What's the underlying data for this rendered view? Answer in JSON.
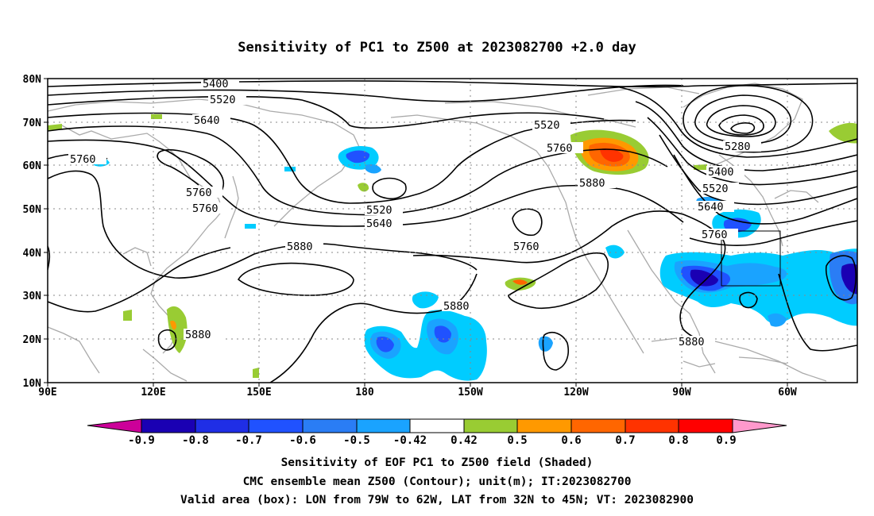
{
  "title": "Sensitivity of PC1 to Z500 at 2023082700 +2.0 day",
  "map": {
    "lon_labels": [
      "90E",
      "120E",
      "150E",
      "180",
      "150W",
      "120W",
      "90W",
      "60W"
    ],
    "lat_labels": [
      "80N",
      "70N",
      "60N",
      "50N",
      "40N",
      "30N",
      "20N",
      "10N"
    ],
    "contour_labels": [
      "5400",
      "5520",
      "5640",
      "5760",
      "5760",
      "5760",
      "5880",
      "5880",
      "5520",
      "5640",
      "5520",
      "5760",
      "5880",
      "5760",
      "5880",
      "5280",
      "5400",
      "5520",
      "5640",
      "5760",
      "5880"
    ],
    "valid_box": {
      "lon_west": "79W",
      "lon_east": "62W",
      "lat_south": "32N",
      "lat_north": "45N"
    }
  },
  "colorbar": {
    "labels": [
      "-0.9",
      "-0.8",
      "-0.7",
      "-0.6",
      "-0.5",
      "-0.42",
      "0.42",
      "0.5",
      "0.6",
      "0.7",
      "0.8",
      "0.9"
    ],
    "colors": [
      "#cc0099",
      "#1a00b3",
      "#1f2ee6",
      "#2052ff",
      "#2a7df5",
      "#1aa3ff",
      "#00ccff",
      "#ffffff",
      "#99cc33",
      "#ff9900",
      "#ff6600",
      "#ff3300",
      "#ff0000",
      "#ff99cc"
    ]
  },
  "captions": {
    "line1": "Sensitivity of EOF PC1 to Z500 field (Shaded)",
    "line2": "CMC ensemble mean Z500 (Contour); unit(m); IT:2023082700",
    "line3": "Valid area (box): LON from 79W to 62W, LAT from 32N to 45N; VT: 2023082900"
  }
}
